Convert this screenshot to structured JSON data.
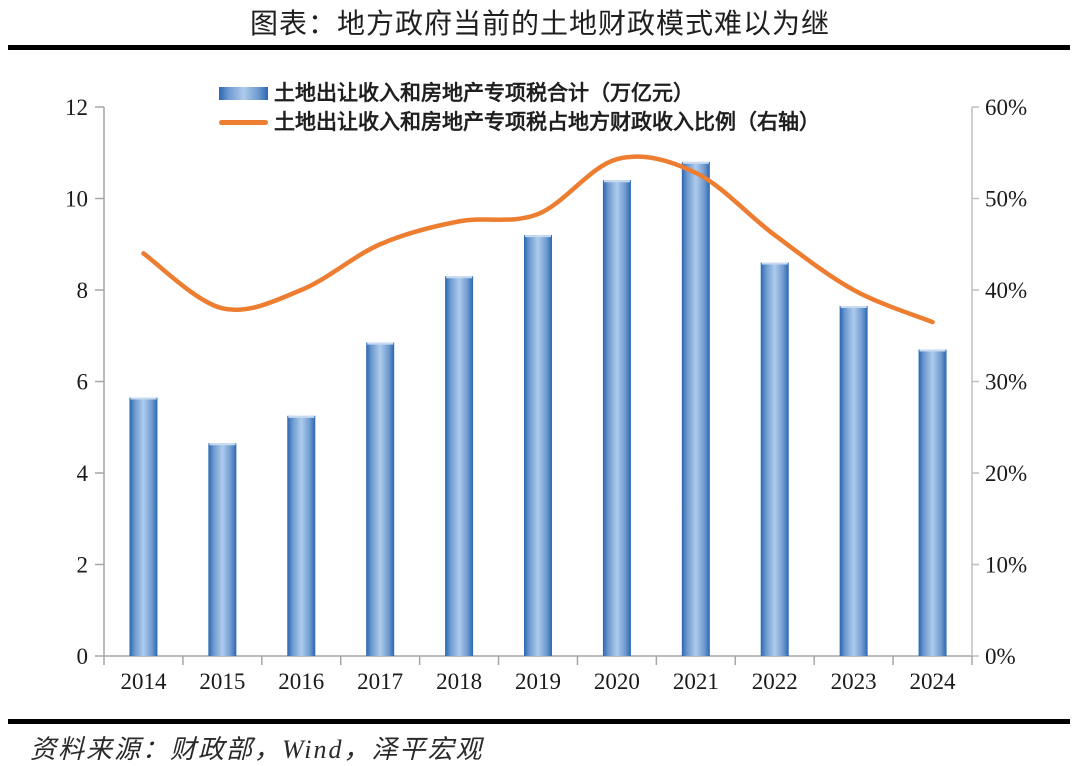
{
  "title": "图表：地方政府当前的土地财政模式难以为继",
  "source": "资料来源：财政部，Wind，泽平宏观",
  "legend": [
    {
      "label": "土地出让收入和房地产专项税合计（万亿元）",
      "marker": "bar-swatch"
    },
    {
      "label": "土地出让收入和房地产专项税占地方财政收入比例（右轴）",
      "marker": "line-swatch"
    }
  ],
  "colors": {
    "bar_edge": "#2B67B0",
    "bar_mid": "#6F9BD0",
    "bar_center": "#AECBEC",
    "bar_top_cap": "#C7DAF0",
    "line": "#ED7D31",
    "axis_left": "#A6A6A6",
    "axis_bottom": "#A6A6A6",
    "axis_right": "#BFBFBF",
    "text": "#1A1A1A",
    "rule": "#000000"
  },
  "chart_data": {
    "type": "bar",
    "subtype": "bar+line combo, secondary right axis",
    "title": "图表：地方政府当前的土地财政模式难以为继",
    "categories": [
      "2014",
      "2015",
      "2016",
      "2017",
      "2018",
      "2019",
      "2020",
      "2021",
      "2022",
      "2023",
      "2024"
    ],
    "series": [
      {
        "name": "土地出让收入和房地产专项税合计（万亿元）",
        "type": "bar",
        "axis": "left",
        "unit": "万亿元",
        "values": [
          5.65,
          4.65,
          5.25,
          6.85,
          8.3,
          9.2,
          10.4,
          10.8,
          8.6,
          7.65,
          6.7
        ]
      },
      {
        "name": "土地出让收入和房地产专项税占地方财政收入比例（右轴）",
        "type": "line",
        "axis": "right",
        "unit": "%",
        "values": [
          44,
          38,
          40,
          45,
          47.5,
          48.3,
          54.3,
          52.8,
          46,
          40,
          36.5
        ]
      }
    ],
    "left_axis": {
      "min": 0,
      "max": 12,
      "step": 2,
      "tick_labels": [
        "0",
        "2",
        "4",
        "6",
        "8",
        "10",
        "12"
      ]
    },
    "right_axis": {
      "min": 0,
      "max": 60,
      "step": 10,
      "tick_labels": [
        "0%",
        "10%",
        "20%",
        "30%",
        "40%",
        "50%",
        "60%"
      ]
    },
    "grid": false,
    "legend_position": "top"
  }
}
